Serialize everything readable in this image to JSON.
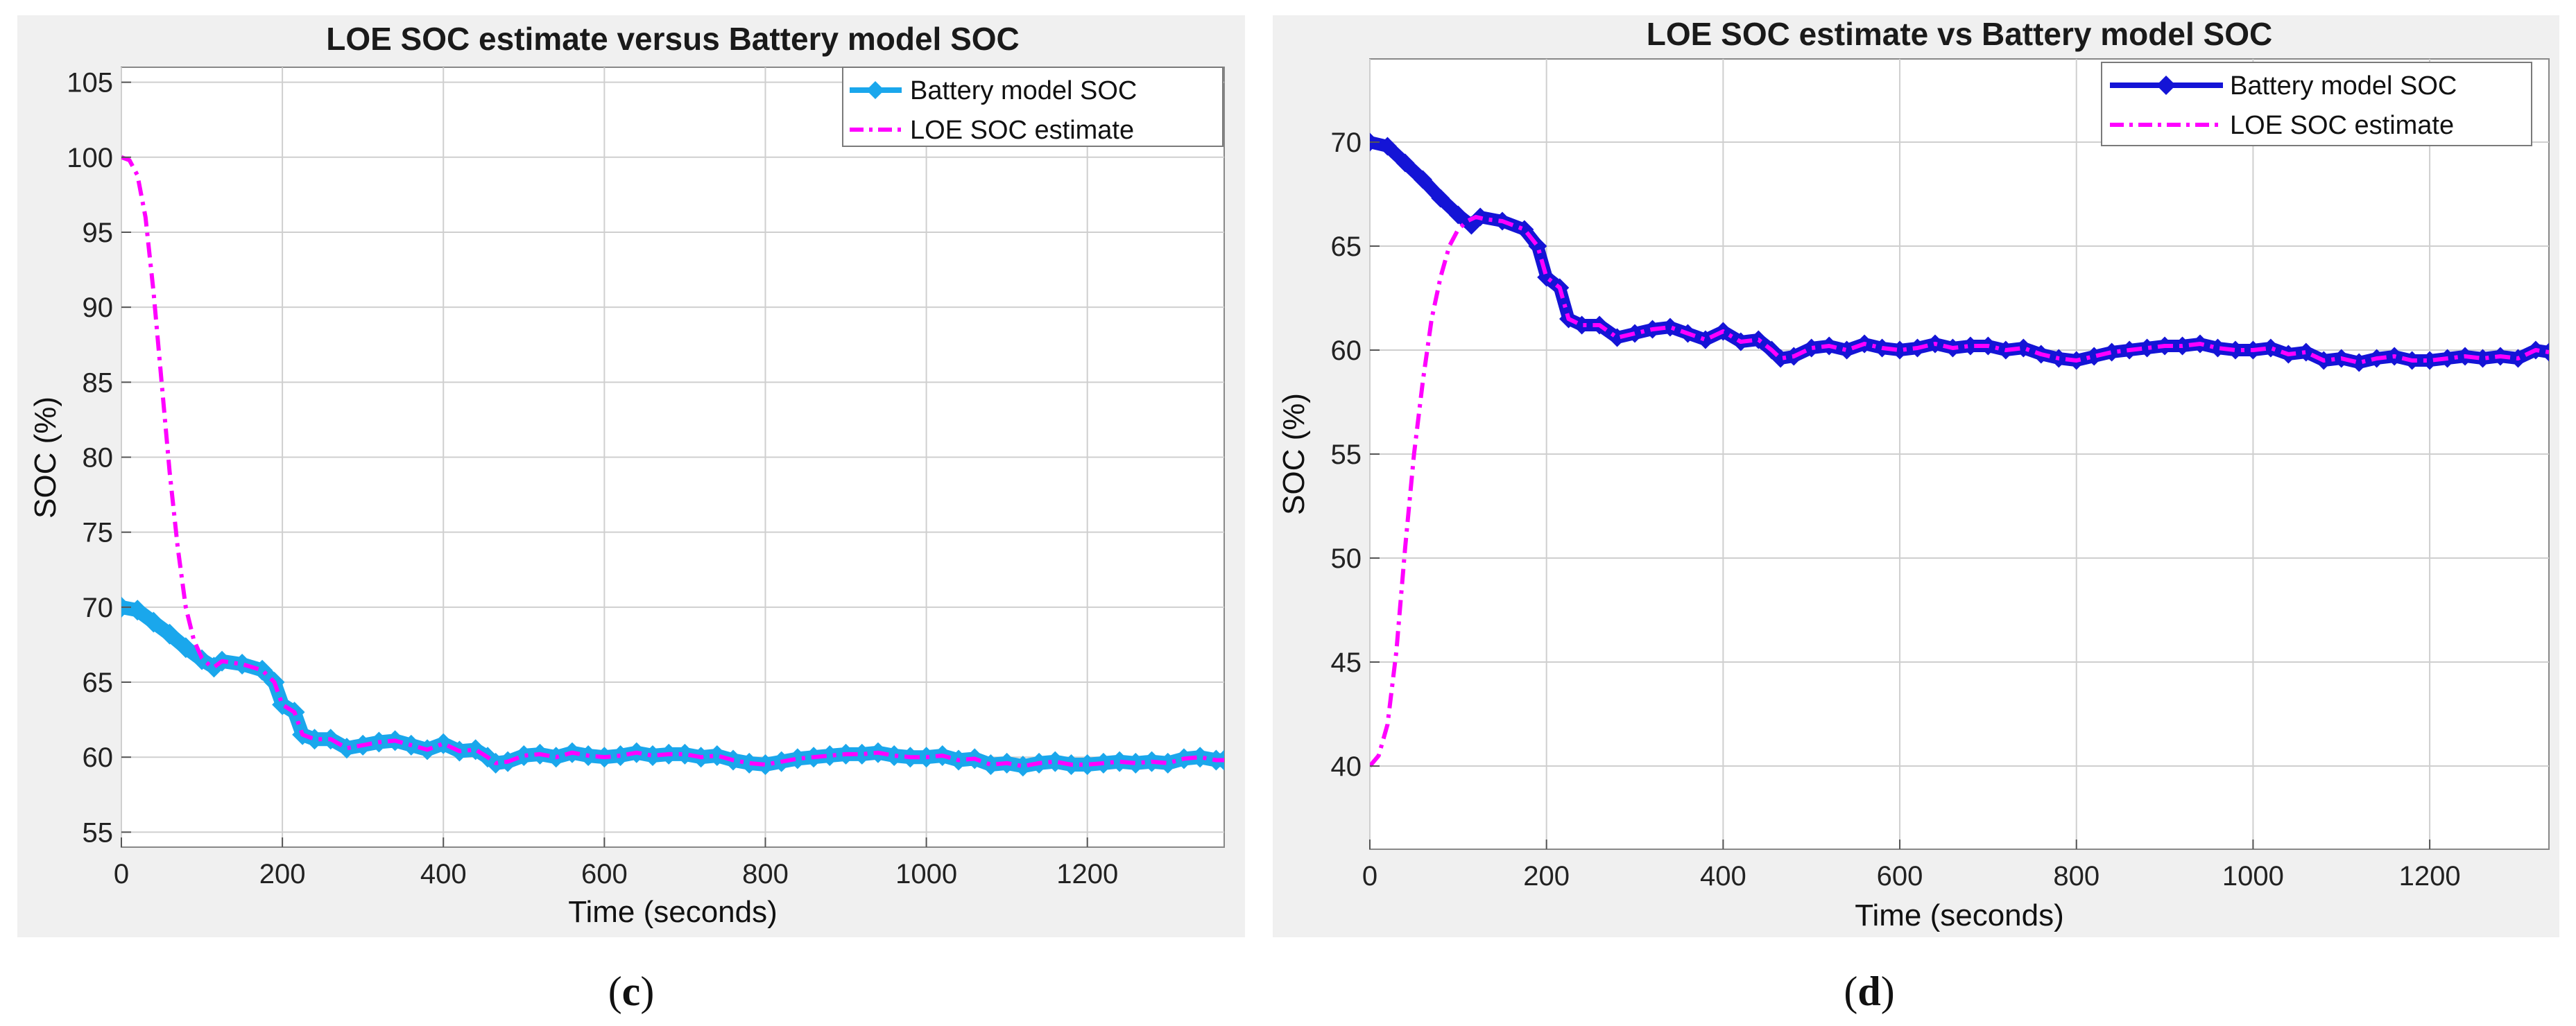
{
  "colors": {
    "battery_c": "#1aa7ec",
    "battery_d": "#1414d6",
    "loe": "#ff00ff",
    "grid": "#cfcfcf",
    "frame": "#888888"
  },
  "chart_data": [
    {
      "type": "line",
      "panel_open": "(",
      "panel_letter": "c",
      "panel_close": ")",
      "title": "LOE  SOC estimate versus  Battery model SOC",
      "xlabel": "Time (seconds)",
      "ylabel": "SOC (%)",
      "xlim": [
        0,
        1370
      ],
      "ylim": [
        54,
        106
      ],
      "xticks": [
        0,
        200,
        400,
        600,
        800,
        1000,
        1200
      ],
      "yticks": [
        55,
        60,
        65,
        70,
        75,
        80,
        85,
        90,
        95,
        100,
        105
      ],
      "grid": true,
      "legend_position": "top-right",
      "series": [
        {
          "name": "Battery model SOC",
          "marker": "diamond",
          "x": [
            0,
            20,
            40,
            60,
            80,
            100,
            115,
            125,
            150,
            175,
            190,
            200,
            215,
            225,
            240,
            260,
            280,
            300,
            320,
            340,
            360,
            380,
            400,
            420,
            440,
            455,
            465,
            480,
            500,
            520,
            540,
            560,
            580,
            600,
            620,
            640,
            660,
            680,
            700,
            720,
            740,
            760,
            780,
            800,
            820,
            840,
            860,
            880,
            900,
            920,
            940,
            960,
            980,
            1000,
            1020,
            1040,
            1060,
            1080,
            1100,
            1120,
            1140,
            1160,
            1180,
            1200,
            1220,
            1240,
            1260,
            1280,
            1300,
            1320,
            1340,
            1360,
            1370
          ],
          "values": [
            70,
            69.8,
            69,
            68.2,
            67.3,
            66.5,
            66,
            66.4,
            66.2,
            65.8,
            65,
            63.5,
            63,
            61.5,
            61.2,
            61.2,
            60.6,
            60.8,
            61,
            61.1,
            60.8,
            60.5,
            60.9,
            60.4,
            60.5,
            60,
            59.6,
            59.7,
            60.1,
            60.2,
            60,
            60.3,
            60.1,
            60,
            60.1,
            60.3,
            60.1,
            60.2,
            60.2,
            60,
            60.1,
            59.8,
            59.6,
            59.5,
            59.7,
            59.9,
            60,
            60.1,
            60.2,
            60.2,
            60.3,
            60.1,
            60,
            60,
            60.1,
            59.8,
            59.9,
            59.5,
            59.6,
            59.4,
            59.6,
            59.7,
            59.5,
            59.5,
            59.6,
            59.7,
            59.6,
            59.7,
            59.6,
            59.9,
            60,
            59.8,
            59.8
          ]
        },
        {
          "name": "LOE  SOC estimate",
          "line_style": "dash-dot",
          "x": [
            0,
            10,
            20,
            30,
            40,
            50,
            60,
            70,
            80,
            90,
            100,
            110,
            115,
            125,
            150,
            175,
            190,
            200,
            215,
            225,
            240,
            260,
            280,
            300,
            320,
            340,
            360,
            380,
            400,
            420,
            440,
            455,
            465,
            480,
            500,
            520,
            540,
            560,
            580,
            600,
            620,
            640,
            660,
            680,
            700,
            720,
            740,
            760,
            780,
            800,
            820,
            840,
            860,
            880,
            900,
            920,
            940,
            960,
            980,
            1000,
            1020,
            1040,
            1060,
            1080,
            1100,
            1120,
            1140,
            1160,
            1180,
            1200,
            1220,
            1240,
            1260,
            1280,
            1300,
            1320,
            1340,
            1360,
            1370
          ],
          "values": [
            100,
            99.8,
            98.8,
            96,
            91,
            85,
            79,
            74,
            70,
            67.8,
            66.6,
            66.1,
            66,
            66.4,
            66.2,
            65.8,
            65,
            63.5,
            63,
            61.5,
            61.2,
            61.2,
            60.6,
            60.8,
            61,
            61.1,
            60.8,
            60.5,
            60.9,
            60.4,
            60.5,
            60,
            59.6,
            59.7,
            60.1,
            60.2,
            60,
            60.3,
            60.1,
            60,
            60.1,
            60.3,
            60.1,
            60.2,
            60.2,
            60,
            60.1,
            59.8,
            59.6,
            59.5,
            59.7,
            59.9,
            60,
            60.1,
            60.2,
            60.2,
            60.3,
            60.1,
            60,
            60,
            60.1,
            59.8,
            59.9,
            59.5,
            59.6,
            59.4,
            59.6,
            59.7,
            59.5,
            59.5,
            59.6,
            59.7,
            59.6,
            59.7,
            59.6,
            59.9,
            60,
            59.8,
            59.8
          ]
        }
      ]
    },
    {
      "type": "line",
      "panel_open": "(",
      "panel_letter": "d",
      "panel_close": ")",
      "title": "LOE SOC  estimate vs Battery model SOC",
      "xlabel": "Time (seconds)",
      "ylabel": "SOC (%)",
      "xlim": [
        0,
        1335
      ],
      "ylim": [
        36,
        74
      ],
      "xticks": [
        0,
        200,
        400,
        600,
        800,
        1000,
        1200
      ],
      "yticks": [
        40,
        45,
        50,
        55,
        60,
        65,
        70
      ],
      "grid": true,
      "legend_position": "top-right",
      "series": [
        {
          "name": "Battery model  SOC",
          "marker": "diamond",
          "x": [
            0,
            20,
            40,
            60,
            80,
            100,
            115,
            125,
            150,
            175,
            190,
            200,
            215,
            225,
            240,
            260,
            280,
            300,
            320,
            340,
            360,
            380,
            400,
            420,
            440,
            455,
            465,
            480,
            500,
            520,
            540,
            560,
            580,
            600,
            620,
            640,
            660,
            680,
            700,
            720,
            740,
            760,
            780,
            800,
            820,
            840,
            860,
            880,
            900,
            920,
            940,
            960,
            980,
            1000,
            1020,
            1040,
            1060,
            1080,
            1100,
            1120,
            1140,
            1160,
            1180,
            1200,
            1220,
            1240,
            1260,
            1280,
            1300,
            1320,
            1335
          ],
          "values": [
            70,
            69.8,
            69,
            68.2,
            67.3,
            66.5,
            66,
            66.4,
            66.2,
            65.8,
            65,
            63.5,
            63,
            61.5,
            61.2,
            61.2,
            60.6,
            60.8,
            61,
            61.1,
            60.8,
            60.5,
            60.9,
            60.4,
            60.5,
            60,
            59.6,
            59.7,
            60.1,
            60.2,
            60,
            60.3,
            60.1,
            60,
            60.1,
            60.3,
            60.1,
            60.2,
            60.2,
            60,
            60.1,
            59.8,
            59.6,
            59.5,
            59.7,
            59.9,
            60,
            60.1,
            60.2,
            60.2,
            60.3,
            60.1,
            60,
            60,
            60.1,
            59.8,
            59.9,
            59.5,
            59.6,
            59.4,
            59.6,
            59.7,
            59.5,
            59.5,
            59.6,
            59.7,
            59.6,
            59.7,
            59.6,
            60,
            59.9
          ]
        },
        {
          "name": "LOE  SOC  estimate",
          "line_style": "dash-dot",
          "x": [
            0,
            10,
            20,
            30,
            40,
            50,
            60,
            70,
            80,
            90,
            100,
            110,
            120,
            130,
            150,
            175,
            190,
            200,
            215,
            225,
            240,
            260,
            280,
            300,
            320,
            340,
            360,
            380,
            400,
            420,
            440,
            455,
            465,
            480,
            500,
            520,
            540,
            560,
            580,
            600,
            620,
            640,
            660,
            680,
            700,
            720,
            740,
            760,
            780,
            800,
            820,
            840,
            860,
            880,
            900,
            920,
            940,
            960,
            980,
            1000,
            1020,
            1040,
            1060,
            1080,
            1100,
            1120,
            1140,
            1160,
            1180,
            1200,
            1220,
            1240,
            1260,
            1280,
            1300,
            1320,
            1335
          ],
          "values": [
            40,
            40.5,
            42,
            45.5,
            50.5,
            55,
            58.5,
            61.5,
            63.5,
            65,
            65.8,
            66.2,
            66.4,
            66.3,
            66.2,
            65.8,
            65,
            63.5,
            63,
            61.5,
            61.2,
            61.2,
            60.6,
            60.8,
            61,
            61.1,
            60.8,
            60.5,
            60.9,
            60.4,
            60.5,
            60,
            59.6,
            59.7,
            60.1,
            60.2,
            60,
            60.3,
            60.1,
            60,
            60.1,
            60.3,
            60.1,
            60.2,
            60.2,
            60,
            60.1,
            59.8,
            59.6,
            59.5,
            59.7,
            59.9,
            60,
            60.1,
            60.2,
            60.2,
            60.3,
            60.1,
            60,
            60,
            60.1,
            59.8,
            59.9,
            59.5,
            59.6,
            59.4,
            59.6,
            59.7,
            59.5,
            59.5,
            59.6,
            59.7,
            59.6,
            59.7,
            59.6,
            60,
            59.9
          ]
        }
      ]
    }
  ]
}
